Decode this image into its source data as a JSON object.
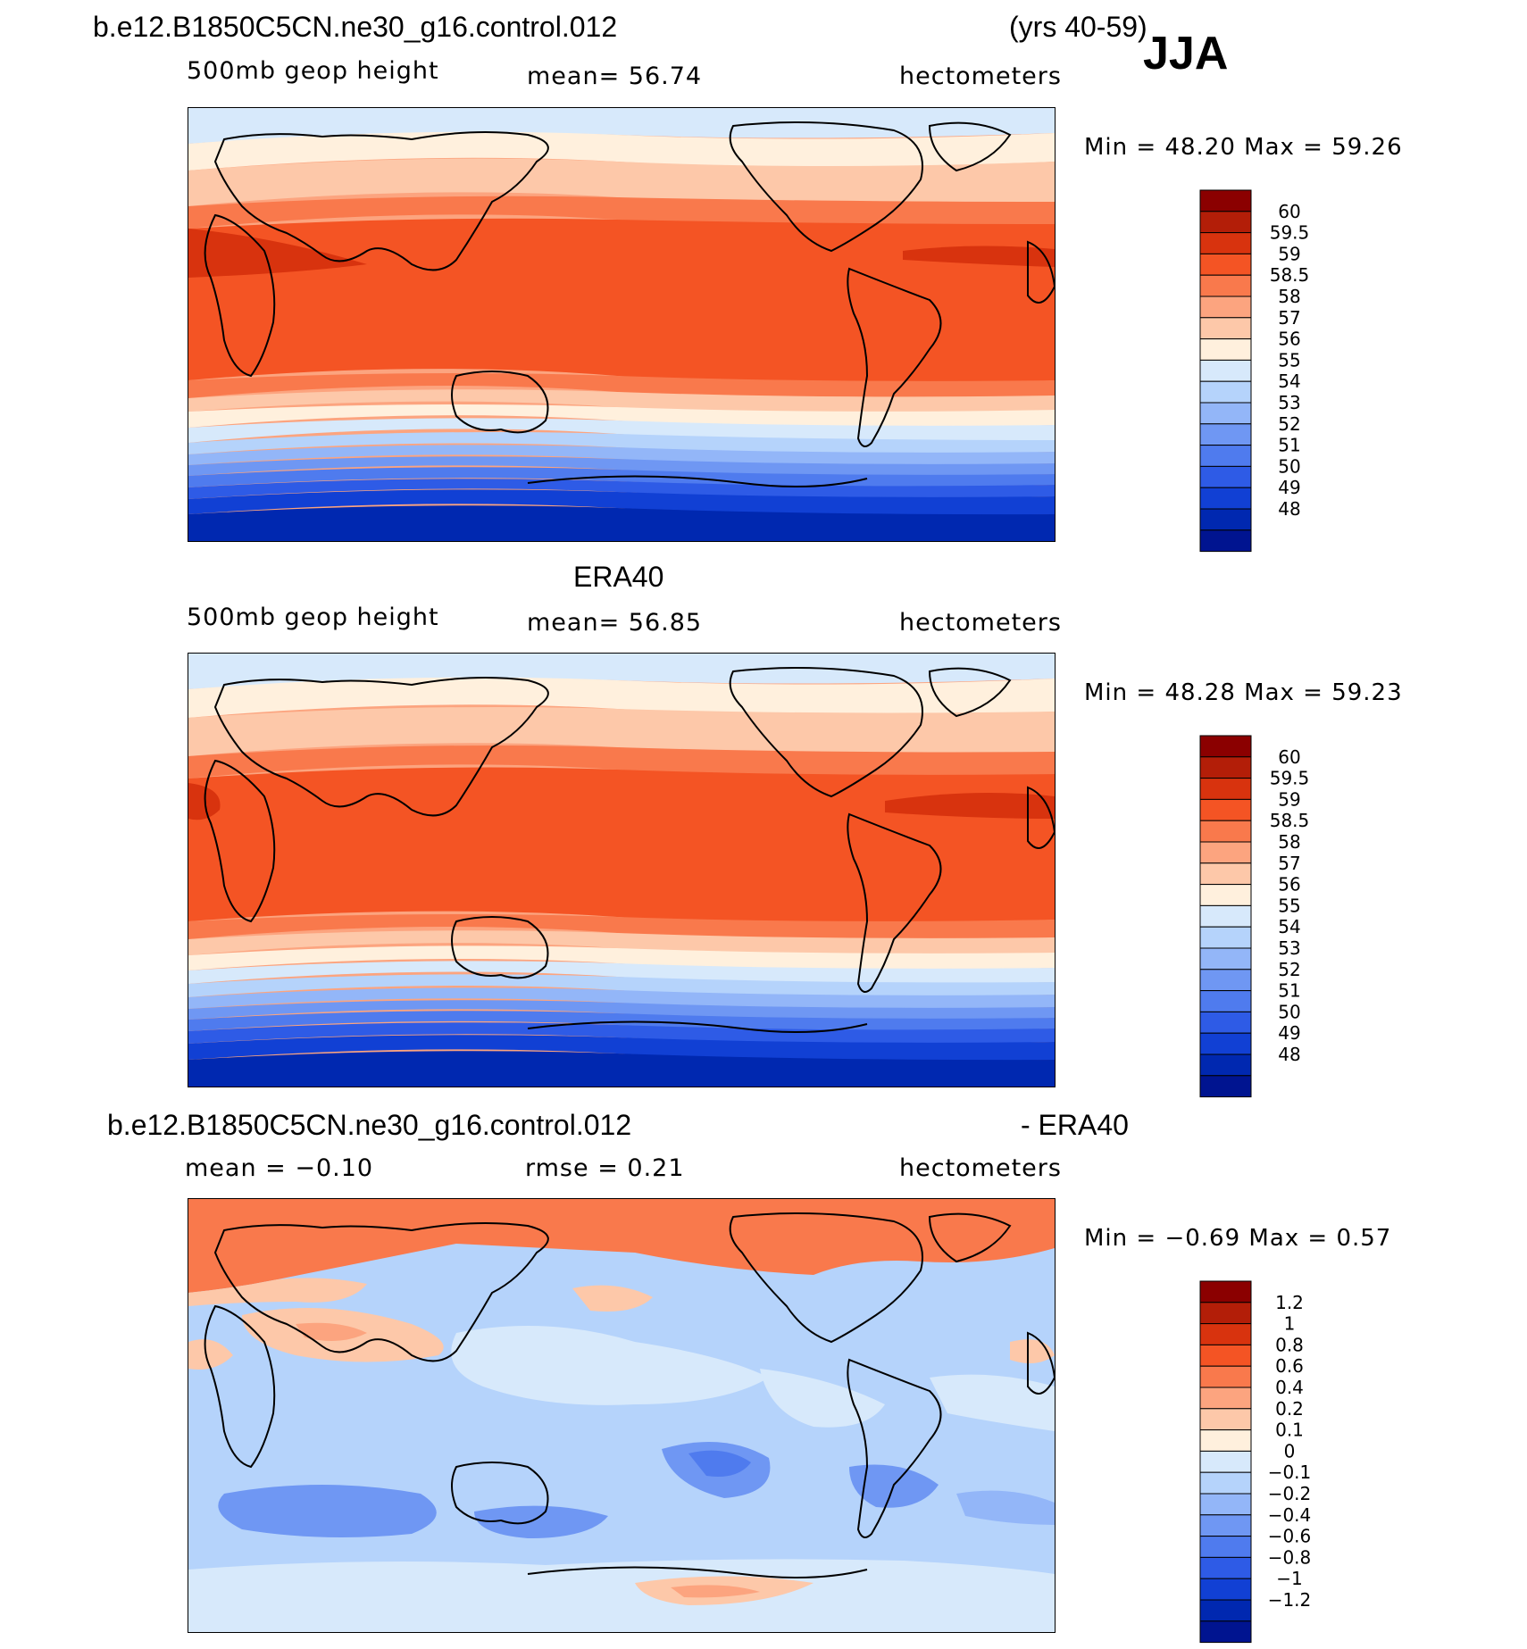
{
  "header": {
    "case_name": "b.e12.B1850C5CN.ne30_g16.control.012",
    "years": "(yrs 40-59)",
    "season": "JJA"
  },
  "panels": [
    {
      "id": "model",
      "title": "",
      "variable": "500mb geop height",
      "stat1": "mean=   56.74",
      "stat2": "",
      "units": "hectometers",
      "minmax": "Min =   48.20  Max =   59.26",
      "colorbar": {
        "labels": [
          "60",
          "59.5",
          "59",
          "58.5",
          "58",
          "57",
          "56",
          "55",
          "54",
          "53",
          "52",
          "51",
          "50",
          "49",
          "48"
        ],
        "colors": [
          "#8b0000",
          "#b31e08",
          "#d8330e",
          "#f45424",
          "#f9794c",
          "#fca47f",
          "#fdc8a9",
          "#fff0dd",
          "#d7e9fb",
          "#b5d3fb",
          "#93b6f8",
          "#6f97f3",
          "#4f7bee",
          "#2e5be6",
          "#1140d4",
          "#0028b0",
          "#001490"
        ]
      }
    },
    {
      "id": "obs",
      "title": "ERA40",
      "variable": "500mb geop height",
      "stat1": "mean=   56.85",
      "stat2": "",
      "units": "hectometers",
      "minmax": "Min =   48.28  Max =   59.23",
      "colorbar": {
        "labels": [
          "60",
          "59.5",
          "59",
          "58.5",
          "58",
          "57",
          "56",
          "55",
          "54",
          "53",
          "52",
          "51",
          "50",
          "49",
          "48"
        ],
        "colors": [
          "#8b0000",
          "#b31e08",
          "#d8330e",
          "#f45424",
          "#f9794c",
          "#fca47f",
          "#fdc8a9",
          "#fff0dd",
          "#d7e9fb",
          "#b5d3fb",
          "#93b6f8",
          "#6f97f3",
          "#4f7bee",
          "#2e5be6",
          "#1140d4",
          "#0028b0",
          "#001490"
        ]
      }
    },
    {
      "id": "diff",
      "title_left": "b.e12.B1850C5CN.ne30_g16.control.012",
      "title_right": "- ERA40",
      "variable": "mean =   −0.10",
      "stat1": "rmse =    0.21",
      "units": "hectometers",
      "minmax": "Min =   −0.69  Max =    0.57",
      "colorbar": {
        "labels": [
          "1.2",
          "1",
          "0.8",
          "0.6",
          "0.4",
          "0.2",
          "0.1",
          "0",
          "−0.1",
          "−0.2",
          "−0.4",
          "−0.6",
          "−0.8",
          "−1",
          "−1.2"
        ],
        "colors": [
          "#8b0000",
          "#b31e08",
          "#d8330e",
          "#f45424",
          "#f9794c",
          "#fca47f",
          "#fdc8a9",
          "#fff0dd",
          "#d7e9fb",
          "#b5d3fb",
          "#93b6f8",
          "#6f97f3",
          "#4f7bee",
          "#2e5be6",
          "#1140d4",
          "#0028b0",
          "#001490"
        ]
      }
    }
  ]
}
